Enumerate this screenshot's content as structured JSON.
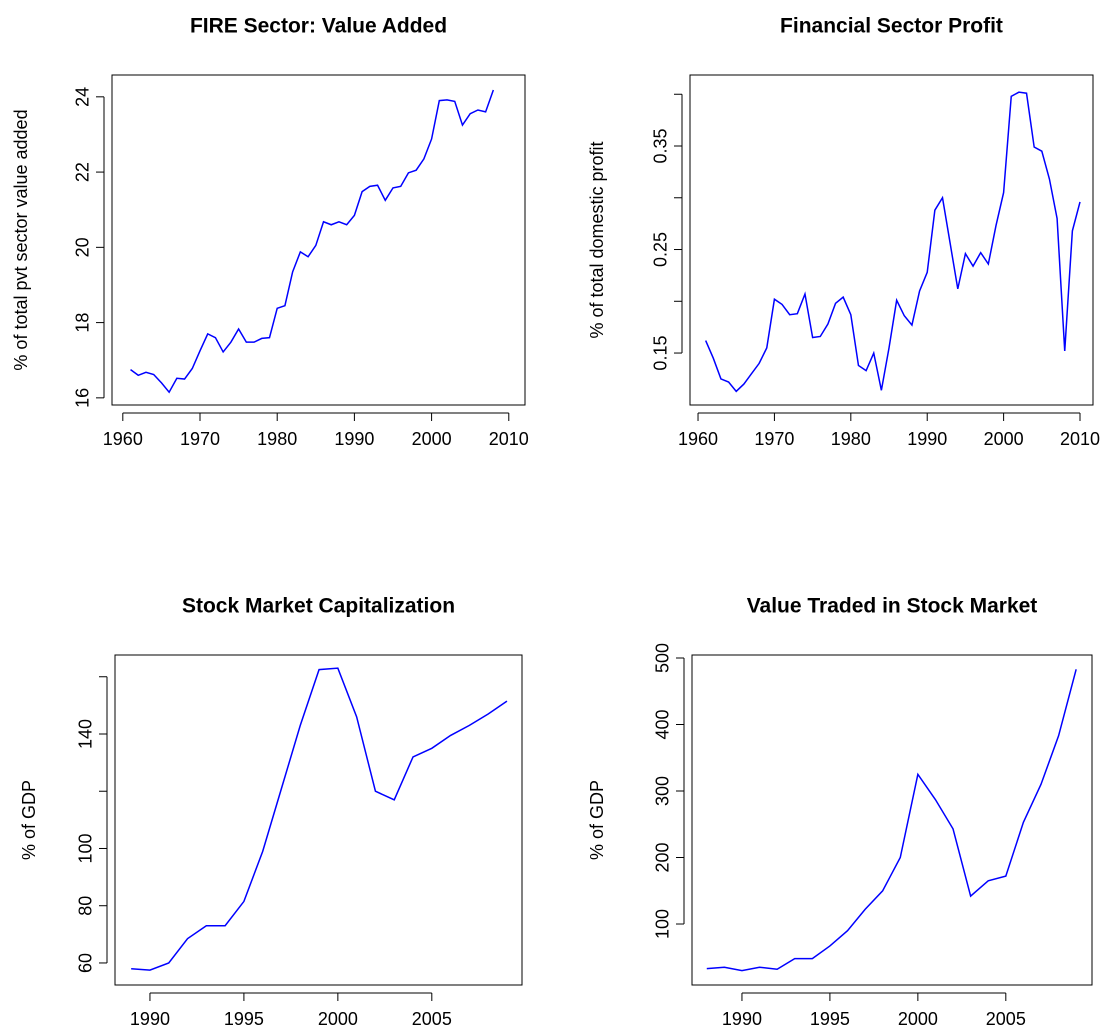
{
  "chart_data": [
    {
      "type": "line",
      "title": "FIRE Sector: Value Added",
      "y_label": "% of total pvt sector value added",
      "color": "#0000ff",
      "x": [
        1961,
        1962,
        1963,
        1964,
        1965,
        1966,
        1967,
        1968,
        1969,
        1970,
        1971,
        1972,
        1973,
        1974,
        1975,
        1976,
        1977,
        1978,
        1979,
        1980,
        1981,
        1982,
        1983,
        1984,
        1985,
        1986,
        1987,
        1988,
        1989,
        1990,
        1991,
        1992,
        1993,
        1994,
        1995,
        1996,
        1997,
        1998,
        1999,
        2000,
        2001,
        2002,
        2003,
        2004,
        2005,
        2006,
        2007,
        2008
      ],
      "values": [
        16.75,
        16.6,
        16.68,
        16.62,
        16.4,
        16.15,
        16.52,
        16.5,
        16.78,
        17.25,
        17.7,
        17.6,
        17.22,
        17.48,
        17.83,
        17.48,
        17.48,
        17.58,
        17.6,
        18.38,
        18.45,
        19.35,
        19.88,
        19.75,
        20.05,
        20.68,
        20.6,
        20.68,
        20.6,
        20.85,
        21.48,
        21.62,
        21.65,
        21.25,
        21.58,
        21.62,
        21.98,
        22.05,
        22.35,
        22.88,
        23.9,
        23.92,
        23.88,
        23.25,
        23.55,
        23.65,
        23.6,
        24.18
      ],
      "xlim": [
        1958.6,
        2012.1
      ],
      "ylim": [
        15.81,
        24.58
      ],
      "xticks": [
        1960,
        1970,
        1980,
        1990,
        2000,
        2010
      ],
      "yticks": [
        16,
        18,
        20,
        22,
        24
      ]
    },
    {
      "type": "line",
      "title": "Financial Sector Profit",
      "y_label": "% of total domestic profit",
      "color": "#0000ff",
      "x": [
        1961,
        1962,
        1963,
        1964,
        1965,
        1966,
        1967,
        1968,
        1969,
        1970,
        1971,
        1972,
        1973,
        1974,
        1975,
        1976,
        1977,
        1978,
        1979,
        1980,
        1981,
        1982,
        1983,
        1984,
        1985,
        1986,
        1987,
        1988,
        1989,
        1990,
        1991,
        1992,
        1993,
        1994,
        1995,
        1996,
        1997,
        1998,
        1999,
        2000,
        2001,
        2002,
        2003,
        2004,
        2005,
        2006,
        2007,
        2008,
        2009,
        2010
      ],
      "values": [
        0.162,
        0.145,
        0.125,
        0.122,
        0.113,
        0.12,
        0.13,
        0.14,
        0.155,
        0.202,
        0.197,
        0.187,
        0.188,
        0.207,
        0.165,
        0.166,
        0.178,
        0.198,
        0.204,
        0.187,
        0.138,
        0.133,
        0.15,
        0.114,
        0.155,
        0.201,
        0.186,
        0.177,
        0.21,
        0.228,
        0.288,
        0.3,
        0.256,
        0.212,
        0.246,
        0.234,
        0.247,
        0.236,
        0.273,
        0.305,
        0.398,
        0.402,
        0.401,
        0.349,
        0.345,
        0.318,
        0.28,
        0.152,
        0.268,
        0.296
      ],
      "xlim": [
        1958.95,
        2011.7
      ],
      "ylim": [
        0.0998,
        0.4186
      ],
      "xticks": [
        1960,
        1970,
        1980,
        1990,
        2000,
        2010
      ],
      "yticks": [
        0.15,
        0.25,
        0.35
      ],
      "minor_yticks": [
        0.2,
        0.3,
        0.4
      ]
    },
    {
      "type": "line",
      "title": "Stock Market Capitalization",
      "y_label": "% of GDP",
      "color": "#0000ff",
      "x": [
        1989,
        1990,
        1991,
        1992,
        1993,
        1994,
        1995,
        1996,
        1997,
        1998,
        1999,
        2000,
        2001,
        2002,
        2003,
        2004,
        2005,
        2006,
        2007,
        2008,
        2009
      ],
      "values": [
        58,
        57.5,
        60,
        68.5,
        73,
        73,
        81.5,
        99,
        121,
        143,
        162.5,
        163,
        146,
        120,
        117,
        132,
        135,
        139.5,
        143,
        147,
        151.5
      ],
      "xlim": [
        1988.14,
        2009.8
      ],
      "ylim": [
        52.3,
        167.6
      ],
      "xticks": [
        1990,
        1995,
        2000,
        2005
      ],
      "yticks": [
        60,
        80,
        100,
        140
      ],
      "minor_yticks": [
        120,
        160
      ]
    },
    {
      "type": "line",
      "title": "Value Traded in Stock Market",
      "y_label": "% of GDP",
      "color": "#0000ff",
      "x": [
        1988,
        1989,
        1990,
        1991,
        1992,
        1993,
        1994,
        1995,
        1996,
        1997,
        1998,
        1999,
        2000,
        2001,
        2002,
        2003,
        2004,
        2005,
        2006,
        2007,
        2008,
        2009
      ],
      "values": [
        33,
        35,
        30,
        35,
        32,
        48,
        48,
        67,
        90,
        122,
        150,
        200,
        325,
        287,
        243,
        142,
        165,
        172,
        253,
        310,
        383,
        483
      ],
      "xlim": [
        1987.16,
        2009.9
      ],
      "ylim": [
        8.3,
        504.5
      ],
      "xticks": [
        1990,
        1995,
        2000,
        2005
      ],
      "yticks": [
        100,
        200,
        300,
        400,
        500
      ]
    }
  ]
}
